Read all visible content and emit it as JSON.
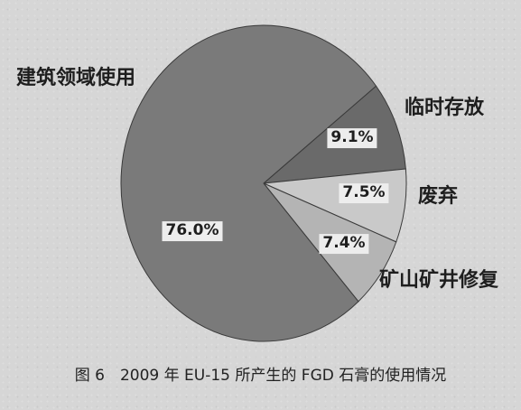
{
  "caption": "图 6　2009 年 EU-15 所产生的 FGD 石膏的使用情况",
  "chart_data": {
    "type": "pie",
    "title": "",
    "slices": [
      {
        "name": "临时存放",
        "value": 9.1,
        "label": "9.1%",
        "color": "#6a6a6a"
      },
      {
        "name": "废弃",
        "value": 7.5,
        "label": "7.5%",
        "color": "#c9c9c9"
      },
      {
        "name": "矿山矿井修复",
        "value": 7.4,
        "label": "7.4%",
        "color": "#b4b4b4"
      },
      {
        "name": "建筑领域使用",
        "value": 76.0,
        "label": "76.0%",
        "color": "#7a7a7a"
      }
    ],
    "start_angle_deg": -38,
    "direction": "clockwise"
  }
}
